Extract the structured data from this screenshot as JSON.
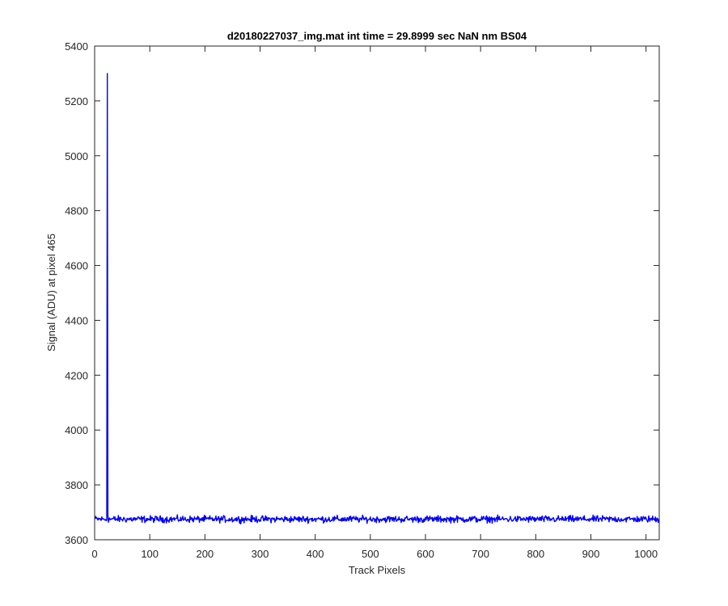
{
  "chart_data": {
    "type": "line",
    "title": "d20180227037_img.mat int time = 29.8999 sec  NaN nm BS04",
    "xlabel": "Track Pixels",
    "ylabel": "Signal (ADU) at pixel 465",
    "xlim": [
      0,
      1024
    ],
    "ylim": [
      3600,
      5400
    ],
    "xticks": [
      0,
      100,
      200,
      300,
      400,
      500,
      600,
      700,
      800,
      900,
      1000
    ],
    "yticks": [
      3600,
      3800,
      4000,
      4200,
      4400,
      4600,
      4800,
      5000,
      5200,
      5400
    ],
    "grid": false,
    "series": [
      {
        "color": "#0000ff",
        "baseline": 3675,
        "noise_amplitude": 12,
        "x_range": [
          1,
          1024
        ],
        "peaks": [
          {
            "x": 22,
            "y": 3672
          },
          {
            "x": 23,
            "y": 5300
          },
          {
            "x": 24,
            "y": 3690
          }
        ]
      }
    ]
  }
}
